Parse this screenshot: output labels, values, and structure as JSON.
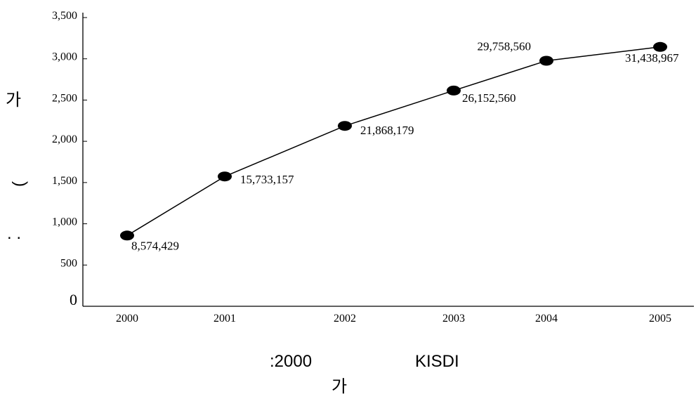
{
  "chart_data": {
    "type": "line",
    "x": [
      "2000",
      "2001",
      "2002",
      "2003",
      "2004",
      "2005"
    ],
    "series": [
      {
        "values": [
          8574429,
          15733157,
          21868179,
          26152560,
          29758560,
          31438967
        ],
        "labels": [
          "8,574,429",
          "15,733,157",
          "21,868,179",
          "26,152,560",
          "29,758,560",
          "31,438,967"
        ]
      }
    ],
    "y_ticks": [
      "0",
      "500",
      "1,000",
      "1,500",
      "2,000",
      "2,500",
      "3,000",
      "3,500"
    ],
    "ylim": [
      0,
      35000000
    ],
    "grid": false,
    "legend": "none",
    "ylabel_fragments": [
      "가",
      ")",
      ". ."
    ],
    "footer": {
      "left": ":2000",
      "right": "KISDI",
      "line2": "가"
    },
    "colors": {
      "line": "#000000",
      "marker": "#000000"
    }
  }
}
